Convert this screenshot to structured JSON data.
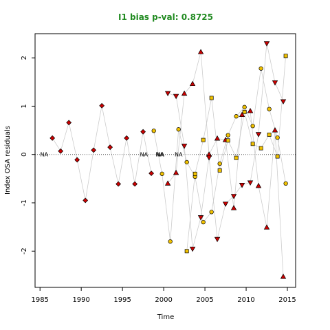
{
  "chart_data": {
    "type": "scatter",
    "title": "I1 bias p-val: 0.8725",
    "xlabel": "Time",
    "ylabel": "Index OSA residuals",
    "xlim": [
      1984.4,
      2016.0
    ],
    "ylim": [
      -2.75,
      2.5
    ],
    "xticks": [
      1985,
      1990,
      1995,
      2000,
      2005,
      2010,
      2015
    ],
    "yticks": [
      -2,
      -1,
      0,
      1,
      2
    ],
    "grid": false,
    "reference_line": 0,
    "colors": {
      "red": "#cc0000",
      "yellow": "#f2c200",
      "line": "#cccccc",
      "title": "#228b22"
    },
    "na_labels": [
      {
        "x": 1985.5,
        "text": "NA"
      },
      {
        "x": 1997.6,
        "text": "NA"
      },
      {
        "x": 1999.5,
        "text": "NA"
      },
      {
        "x": 1999.6,
        "text": "NA"
      },
      {
        "x": 2001.8,
        "text": "NA"
      }
    ],
    "series": [
      {
        "shape": "diamond",
        "fill": "#cc0000",
        "x": [
          1986.5,
          1987.5,
          1988.5,
          1989.5,
          1990.5,
          1991.5,
          1992.5,
          1993.5,
          1994.5,
          1995.5,
          1996.5,
          1997.5,
          1998.5
        ],
        "y": [
          0.34,
          0.07,
          0.66,
          -0.11,
          -0.95,
          0.09,
          1.01,
          0.15,
          -0.61,
          0.34,
          -0.61,
          0.47,
          -0.39
        ]
      },
      {
        "shape": "triangle-up",
        "fill": "#cc0000",
        "x": [
          2000.5,
          2001.5,
          2002.5,
          2003.5,
          2004.5,
          2005.5,
          2006.5,
          2007.5,
          2008.5,
          2009.5,
          2010.5,
          2011.5,
          2012.5,
          2013.5,
          2014.5
        ],
        "y": [
          -0.6,
          -0.38,
          1.26,
          1.46,
          2.12,
          0.0,
          0.33,
          0.3,
          -1.11,
          0.82,
          0.9,
          -0.65,
          -1.51,
          0.5,
          -2.53
        ]
      },
      {
        "shape": "triangle-down",
        "fill": "#cc0000",
        "x": [
          2000.5,
          2001.5,
          2002.5,
          2003.5,
          2004.5,
          2005.5,
          2006.5,
          2007.5,
          2008.5,
          2009.5,
          2010.5,
          2011.5,
          2012.5,
          2013.5,
          2014.5
        ],
        "y": [
          1.27,
          1.21,
          0.18,
          -1.95,
          -1.3,
          -0.06,
          -1.75,
          -1.02,
          -0.86,
          -0.63,
          -0.58,
          0.42,
          2.3,
          1.49,
          1.1
        ]
      },
      {
        "shape": "circle",
        "fill": "#f2c200",
        "x": [
          1998.8,
          1999.8,
          2000.8,
          2001.8,
          2002.8,
          2003.8,
          2004.8,
          2005.8,
          2006.8,
          2007.8,
          2008.8,
          2009.8,
          2010.8,
          2011.8,
          2012.8,
          2013.8,
          2014.8
        ],
        "y": [
          0.49,
          -0.4,
          -1.8,
          0.52,
          -0.16,
          -0.46,
          -1.4,
          -1.19,
          -0.19,
          0.4,
          0.79,
          0.98,
          0.59,
          1.78,
          0.94,
          0.35,
          -0.6
        ]
      },
      {
        "shape": "square",
        "fill": "#f2c200",
        "x": [
          2002.8,
          2003.8,
          2004.8,
          2005.8,
          2006.8,
          2007.8,
          2008.8,
          2009.8,
          2010.8,
          2011.8,
          2012.8,
          2013.8,
          2014.8
        ],
        "y": [
          -2.0,
          -0.4,
          0.3,
          1.17,
          -0.33,
          0.29,
          -0.07,
          0.88,
          0.22,
          0.13,
          0.41,
          -0.04,
          2.04
        ]
      }
    ]
  }
}
